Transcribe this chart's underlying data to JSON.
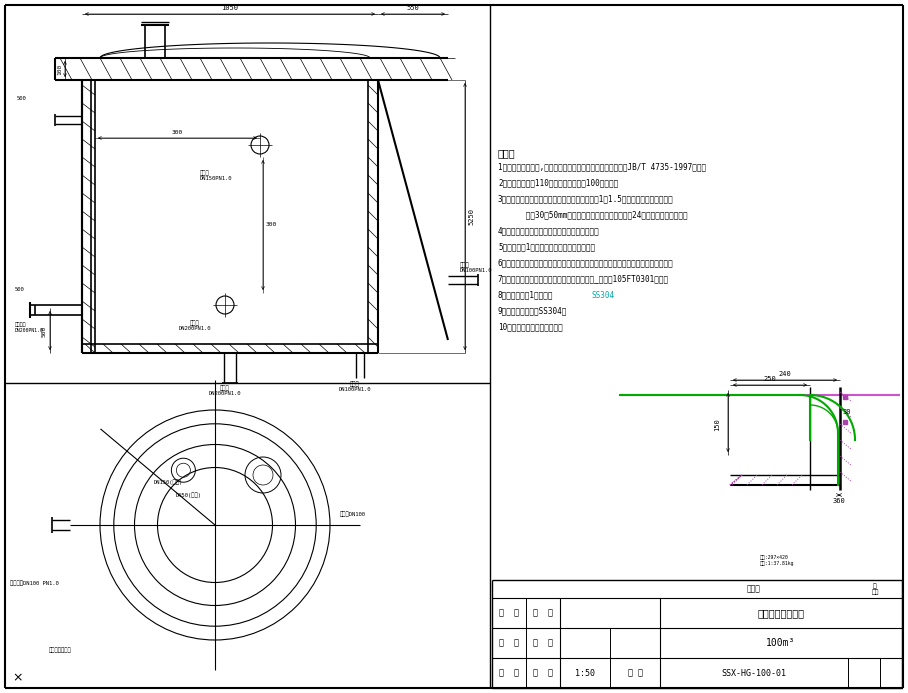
{
  "bg_color": "#ffffff",
  "notes_title": "说明：",
  "notes": [
    "1、水箱按常压设计,水箱施工及验收见《钢制焊接常压容器》JB/T 4735-1997进行。",
    "2、水箱几何容积110立方米，有效容积100立方米。",
    "3、水箱应作严密性的水压试验，将水箱装满水用1－1.5公斤锤子沿所有焊缝但距",
    "      焊缝30－50mm处轻轻敲打，试验时间不得少于24小时，并检验焊缝不应",
    "4、经水压试验合格后的水箱，进行下一步工序。",
    "5、栏杆间距1米左右，布置方式见平断面图。",
    "6、水箱进水管、出水管、溢流管、排污管均按本图材料表所规定的规格及位置施工。",
    "7、水箱安装防腐完毕后保温，材料及厚度按照_图号：105FT0301要求。",
    "8、按本图制作1个水箱。",
    "9、水箱本体材料：SS304。",
    "10、吊耳根据实际情况安装。"
  ],
  "title": "反渗透水箱定位图",
  "subtitle": "100m³",
  "scale": "1:50",
  "drawing_no": "SSX-HG-100-01"
}
